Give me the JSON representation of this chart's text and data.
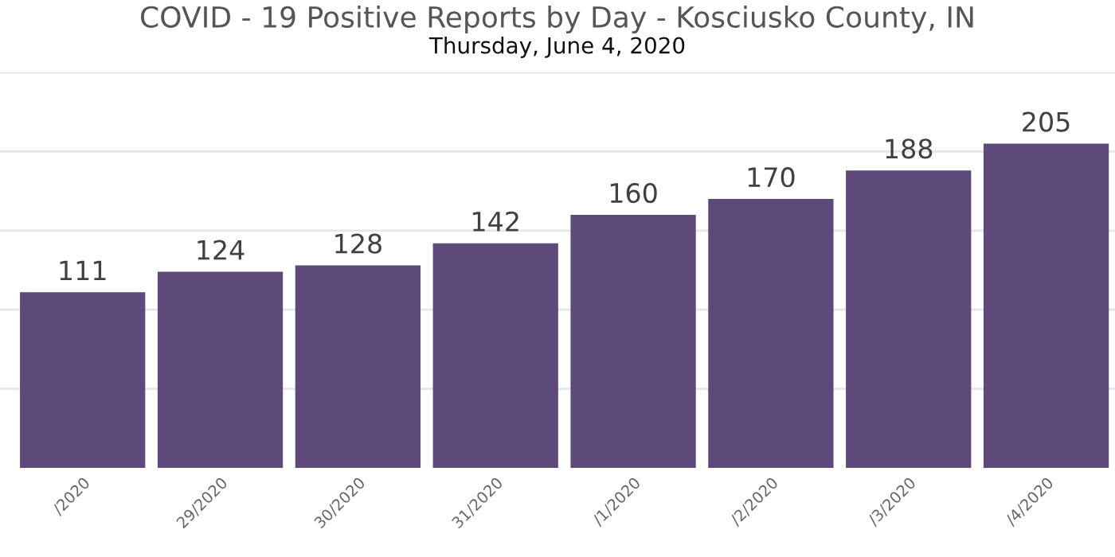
{
  "chart_data": {
    "type": "bar",
    "title": "COVID - 19 Positive Reports by Day - Kosciusko County, IN",
    "subtitle": "Thursday, June 4, 2020",
    "categories": [
      "/2020",
      "29/2020",
      "30/2020",
      "31/2020",
      "/1/2020",
      "/2/2020",
      "/3/2020",
      "/4/2020"
    ],
    "values": [
      111,
      124,
      128,
      142,
      160,
      170,
      188,
      205
    ],
    "color": "#5e4a7a",
    "ylim": [
      0,
      250
    ],
    "yticks": [
      {
        "value": 50,
        "label": null
      },
      {
        "value": 100,
        "label": null
      },
      {
        "value": 150,
        "label": null
      },
      {
        "value": 200,
        "label": null
      },
      {
        "value": 250,
        "label": null
      }
    ],
    "grid": "y",
    "data_labels": true,
    "tick_labels": "x"
  }
}
